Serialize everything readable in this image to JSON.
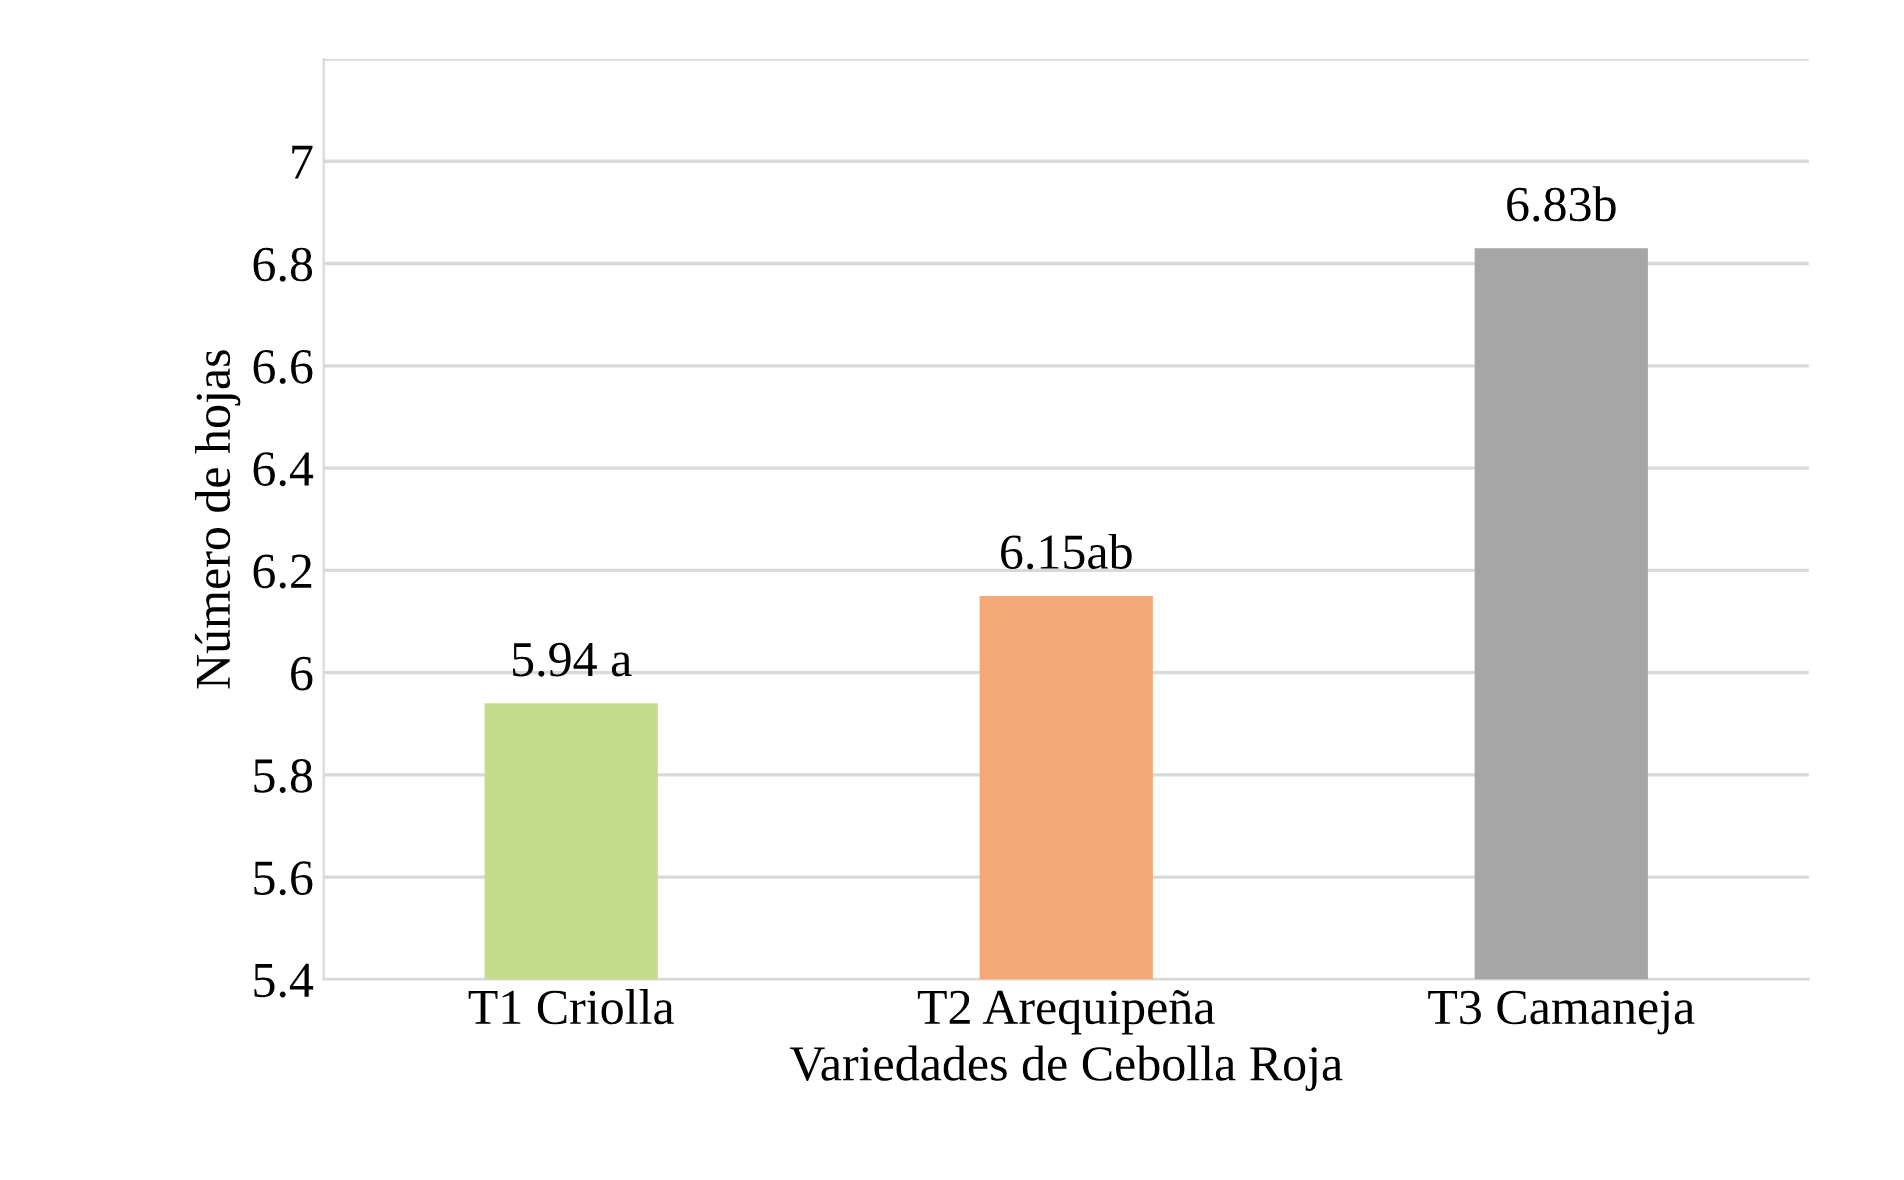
{
  "chart_data": {
    "type": "bar",
    "xlabel": "Variedades de Cebolla Roja",
    "ylabel": "Número de hojas",
    "categories": [
      "T1 Criolla",
      "T2 Arequipeña",
      "T3 Camaneja"
    ],
    "values": [
      5.94,
      6.15,
      6.83
    ],
    "colors": [
      "#c4dc8c",
      "#f4a878",
      "#a6a6a6"
    ],
    "value_labels": [
      "5.94 a",
      "6.15ab",
      "6.83b"
    ],
    "ylim": [
      5.4,
      7.2
    ],
    "yticks": [
      5.4,
      5.6,
      5.8,
      6,
      6.2,
      6.4,
      6.6,
      6.8,
      7,
      {
        "value": 7.2,
        "label": null
      }
    ],
    "grid": "y",
    "legend": false
  }
}
